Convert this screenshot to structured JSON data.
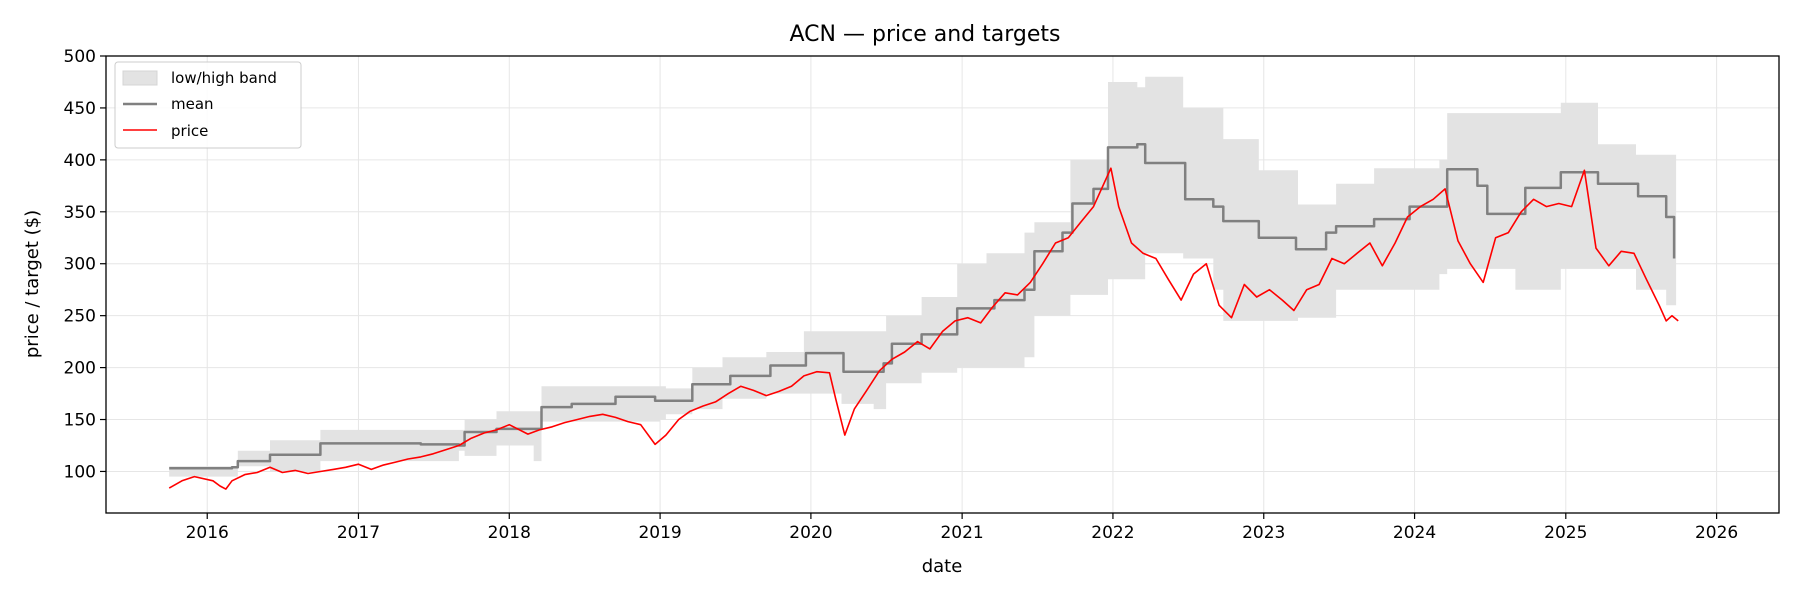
{
  "chart_data": {
    "type": "line",
    "title": "ACN — price and targets",
    "xlabel": "date",
    "ylabel": "price / target ($)",
    "ylim": [
      60,
      500
    ],
    "xlim": [
      "2015-05-01",
      "2026-06-01"
    ],
    "yticks": [
      100,
      150,
      200,
      250,
      300,
      350,
      400,
      450,
      500
    ],
    "xticks": [
      "2016",
      "2017",
      "2018",
      "2019",
      "2020",
      "2021",
      "2022",
      "2023",
      "2024",
      "2025",
      "2026"
    ],
    "grid": true,
    "legend_position": "top-left",
    "colors": {
      "band": "#e3e3e3",
      "mean": "#808080",
      "price": "#ff0000"
    },
    "series": [
      {
        "name": "low/high band",
        "kind": "band",
        "points": [
          [
            "2015-10-01",
            95,
            105
          ],
          [
            "2016-03-01",
            95,
            105
          ],
          [
            "2016-03-15",
            105,
            120
          ],
          [
            "2016-06-01",
            100,
            130
          ],
          [
            "2016-10-01",
            110,
            140
          ],
          [
            "2017-09-01",
            120,
            140
          ],
          [
            "2017-09-15",
            115,
            150
          ],
          [
            "2017-12-01",
            125,
            158
          ],
          [
            "2018-03-01",
            110,
            158
          ],
          [
            "2018-03-20",
            148,
            182
          ],
          [
            "2019-01-01",
            150,
            182
          ],
          [
            "2019-01-15",
            155,
            180
          ],
          [
            "2019-03-20",
            160,
            200
          ],
          [
            "2019-06-01",
            170,
            210
          ],
          [
            "2019-09-15",
            175,
            215
          ],
          [
            "2019-12-15",
            175,
            235
          ],
          [
            "2020-03-15",
            165,
            235
          ],
          [
            "2020-06-01",
            160,
            235
          ],
          [
            "2020-07-01",
            185,
            250
          ],
          [
            "2020-09-25",
            195,
            268
          ],
          [
            "2020-12-20",
            200,
            300
          ],
          [
            "2021-03-01",
            200,
            310
          ],
          [
            "2021-06-01",
            210,
            330
          ],
          [
            "2021-06-25",
            250,
            340
          ],
          [
            "2021-09-20",
            270,
            400
          ],
          [
            "2021-12-20",
            285,
            475
          ],
          [
            "2022-03-01",
            285,
            470
          ],
          [
            "2022-03-20",
            310,
            480
          ],
          [
            "2022-06-20",
            305,
            450
          ],
          [
            "2022-09-01",
            275,
            450
          ],
          [
            "2022-09-25",
            245,
            420
          ],
          [
            "2022-12-20",
            245,
            390
          ],
          [
            "2023-03-25",
            248,
            357
          ],
          [
            "2023-06-25",
            275,
            377
          ],
          [
            "2023-09-25",
            275,
            392
          ],
          [
            "2024-03-01",
            290,
            400
          ],
          [
            "2024-03-20",
            295,
            445
          ],
          [
            "2024-06-01",
            295,
            445
          ],
          [
            "2024-09-01",
            275,
            445
          ],
          [
            "2024-12-20",
            295,
            455
          ],
          [
            "2025-03-20",
            295,
            415
          ],
          [
            "2025-06-20",
            275,
            405
          ],
          [
            "2025-09-01",
            260,
            405
          ],
          [
            "2025-09-25",
            270,
            390
          ]
        ]
      },
      {
        "name": "mean",
        "kind": "step",
        "points": [
          [
            "2015-10-01",
            103
          ],
          [
            "2016-03-01",
            104
          ],
          [
            "2016-03-15",
            110
          ],
          [
            "2016-06-01",
            116
          ],
          [
            "2016-10-01",
            127
          ],
          [
            "2017-06-01",
            126
          ],
          [
            "2017-09-01",
            125
          ],
          [
            "2017-09-15",
            138
          ],
          [
            "2017-12-01",
            141
          ],
          [
            "2018-03-20",
            162
          ],
          [
            "2018-06-01",
            165
          ],
          [
            "2018-09-15",
            172
          ],
          [
            "2018-12-20",
            168
          ],
          [
            "2019-03-20",
            184
          ],
          [
            "2019-06-20",
            192
          ],
          [
            "2019-09-25",
            202
          ],
          [
            "2019-12-20",
            214
          ],
          [
            "2020-03-20",
            196
          ],
          [
            "2020-06-25",
            204
          ],
          [
            "2020-07-15",
            223
          ],
          [
            "2020-09-25",
            232
          ],
          [
            "2020-12-20",
            257
          ],
          [
            "2021-03-20",
            265
          ],
          [
            "2021-06-01",
            275
          ],
          [
            "2021-06-25",
            312
          ],
          [
            "2021-09-01",
            330
          ],
          [
            "2021-09-25",
            358
          ],
          [
            "2021-11-15",
            372
          ],
          [
            "2021-12-20",
            412
          ],
          [
            "2022-03-01",
            415
          ],
          [
            "2022-03-20",
            397
          ],
          [
            "2022-06-25",
            362
          ],
          [
            "2022-09-01",
            355
          ],
          [
            "2022-09-25",
            341
          ],
          [
            "2022-12-20",
            325
          ],
          [
            "2023-03-20",
            314
          ],
          [
            "2023-06-01",
            330
          ],
          [
            "2023-06-25",
            336
          ],
          [
            "2023-09-25",
            343
          ],
          [
            "2023-12-20",
            355
          ],
          [
            "2024-03-20",
            391
          ],
          [
            "2024-06-01",
            375
          ],
          [
            "2024-06-25",
            348
          ],
          [
            "2024-09-25",
            373
          ],
          [
            "2024-12-20",
            388
          ],
          [
            "2025-03-20",
            377
          ],
          [
            "2025-06-25",
            365
          ],
          [
            "2025-09-01",
            345
          ],
          [
            "2025-09-20",
            305
          ]
        ]
      },
      {
        "name": "price",
        "kind": "line",
        "points": [
          [
            "2015-10-01",
            84
          ],
          [
            "2015-11-01",
            91
          ],
          [
            "2015-12-01",
            95
          ],
          [
            "2016-01-15",
            91
          ],
          [
            "2016-02-01",
            86
          ],
          [
            "2016-02-15",
            83
          ],
          [
            "2016-03-01",
            91
          ],
          [
            "2016-04-01",
            97
          ],
          [
            "2016-05-01",
            99
          ],
          [
            "2016-06-01",
            104
          ],
          [
            "2016-07-01",
            99
          ],
          [
            "2016-08-01",
            101
          ],
          [
            "2016-09-01",
            98
          ],
          [
            "2016-10-01",
            100
          ],
          [
            "2016-11-01",
            102
          ],
          [
            "2016-12-01",
            104
          ],
          [
            "2017-01-01",
            107
          ],
          [
            "2017-02-01",
            102
          ],
          [
            "2017-03-01",
            106
          ],
          [
            "2017-04-01",
            109
          ],
          [
            "2017-05-01",
            112
          ],
          [
            "2017-06-01",
            114
          ],
          [
            "2017-07-01",
            117
          ],
          [
            "2017-08-01",
            121
          ],
          [
            "2017-09-01",
            125
          ],
          [
            "2017-10-01",
            132
          ],
          [
            "2017-11-01",
            137
          ],
          [
            "2017-12-01",
            140
          ],
          [
            "2018-01-01",
            145
          ],
          [
            "2018-02-15",
            136
          ],
          [
            "2018-03-15",
            140
          ],
          [
            "2018-04-15",
            143
          ],
          [
            "2018-05-15",
            147
          ],
          [
            "2018-06-15",
            150
          ],
          [
            "2018-07-15",
            153
          ],
          [
            "2018-08-15",
            155
          ],
          [
            "2018-09-15",
            152
          ],
          [
            "2018-10-15",
            148
          ],
          [
            "2018-11-15",
            145
          ],
          [
            "2018-12-20",
            126
          ],
          [
            "2019-01-15",
            135
          ],
          [
            "2019-02-15",
            150
          ],
          [
            "2019-03-15",
            158
          ],
          [
            "2019-04-15",
            163
          ],
          [
            "2019-05-15",
            167
          ],
          [
            "2019-06-15",
            175
          ],
          [
            "2019-07-15",
            182
          ],
          [
            "2019-08-15",
            178
          ],
          [
            "2019-09-15",
            173
          ],
          [
            "2019-10-15",
            177
          ],
          [
            "2019-11-15",
            182
          ],
          [
            "2019-12-15",
            192
          ],
          [
            "2020-01-15",
            196
          ],
          [
            "2020-02-15",
            195
          ],
          [
            "2020-03-01",
            170
          ],
          [
            "2020-03-23",
            135
          ],
          [
            "2020-04-15",
            160
          ],
          [
            "2020-05-15",
            178
          ],
          [
            "2020-06-15",
            197
          ],
          [
            "2020-07-15",
            208
          ],
          [
            "2020-08-15",
            215
          ],
          [
            "2020-09-15",
            225
          ],
          [
            "2020-10-15",
            218
          ],
          [
            "2020-11-15",
            235
          ],
          [
            "2020-12-15",
            245
          ],
          [
            "2021-01-15",
            248
          ],
          [
            "2021-02-15",
            243
          ],
          [
            "2021-03-15",
            258
          ],
          [
            "2021-04-15",
            272
          ],
          [
            "2021-05-15",
            270
          ],
          [
            "2021-06-15",
            282
          ],
          [
            "2021-07-15",
            300
          ],
          [
            "2021-08-15",
            320
          ],
          [
            "2021-09-15",
            325
          ],
          [
            "2021-10-15",
            340
          ],
          [
            "2021-11-15",
            355
          ],
          [
            "2021-12-27",
            392
          ],
          [
            "2022-01-15",
            355
          ],
          [
            "2022-02-15",
            320
          ],
          [
            "2022-03-15",
            310
          ],
          [
            "2022-04-15",
            305
          ],
          [
            "2022-05-15",
            285
          ],
          [
            "2022-06-15",
            265
          ],
          [
            "2022-07-15",
            290
          ],
          [
            "2022-08-15",
            300
          ],
          [
            "2022-09-15",
            260
          ],
          [
            "2022-10-15",
            248
          ],
          [
            "2022-11-15",
            280
          ],
          [
            "2022-12-15",
            268
          ],
          [
            "2023-01-15",
            275
          ],
          [
            "2023-02-15",
            265
          ],
          [
            "2023-03-15",
            255
          ],
          [
            "2023-04-15",
            275
          ],
          [
            "2023-05-15",
            280
          ],
          [
            "2023-06-15",
            305
          ],
          [
            "2023-07-15",
            300
          ],
          [
            "2023-08-15",
            310
          ],
          [
            "2023-09-15",
            320
          ],
          [
            "2023-10-15",
            298
          ],
          [
            "2023-11-15",
            320
          ],
          [
            "2023-12-15",
            345
          ],
          [
            "2024-01-15",
            355
          ],
          [
            "2024-02-15",
            362
          ],
          [
            "2024-03-15",
            372
          ],
          [
            "2024-04-15",
            322
          ],
          [
            "2024-05-15",
            300
          ],
          [
            "2024-06-15",
            282
          ],
          [
            "2024-07-15",
            325
          ],
          [
            "2024-08-15",
            330
          ],
          [
            "2024-09-15",
            350
          ],
          [
            "2024-10-15",
            362
          ],
          [
            "2024-11-15",
            355
          ],
          [
            "2024-12-15",
            358
          ],
          [
            "2025-01-15",
            355
          ],
          [
            "2025-02-15",
            390
          ],
          [
            "2025-03-15",
            315
          ],
          [
            "2025-04-15",
            298
          ],
          [
            "2025-05-15",
            312
          ],
          [
            "2025-06-15",
            310
          ],
          [
            "2025-07-15",
            285
          ],
          [
            "2025-08-15",
            260
          ],
          [
            "2025-09-01",
            245
          ],
          [
            "2025-09-15",
            250
          ],
          [
            "2025-09-30",
            245
          ]
        ]
      }
    ]
  }
}
